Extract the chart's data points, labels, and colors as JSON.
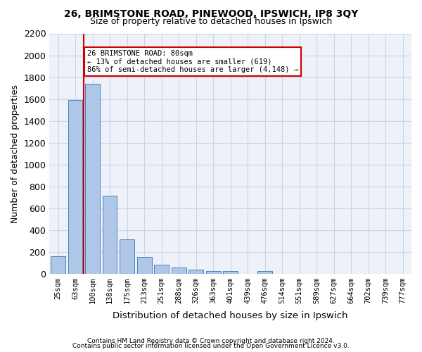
{
  "title1": "26, BRIMSTONE ROAD, PINEWOOD, IPSWICH, IP8 3QY",
  "title2": "Size of property relative to detached houses in Ipswich",
  "xlabel": "Distribution of detached houses by size in Ipswich",
  "ylabel": "Number of detached properties",
  "footnote1": "Contains HM Land Registry data © Crown copyright and database right 2024.",
  "footnote2": "Contains public sector information licensed under the Open Government Licence v3.0.",
  "categories": [
    "25sqm",
    "63sqm",
    "100sqm",
    "138sqm",
    "175sqm",
    "213sqm",
    "251sqm",
    "288sqm",
    "326sqm",
    "363sqm",
    "401sqm",
    "439sqm",
    "476sqm",
    "514sqm",
    "551sqm",
    "589sqm",
    "627sqm",
    "664sqm",
    "702sqm",
    "739sqm",
    "777sqm"
  ],
  "values": [
    160,
    1590,
    1740,
    710,
    315,
    155,
    80,
    55,
    35,
    25,
    20,
    0,
    20,
    0,
    0,
    0,
    0,
    0,
    0,
    0,
    0
  ],
  "bar_color": "#aec6e8",
  "bar_edge_color": "#4f81bd",
  "grid_color": "#c8d4e8",
  "bg_color": "#eef2f8",
  "vline_x": 1,
  "vline_color": "#cc0000",
  "annotation_text": "26 BRIMSTONE ROAD: 80sqm\n← 13% of detached houses are smaller (619)\n86% of semi-detached houses are larger (4,148) →",
  "annotation_box_color": "#cc0000",
  "ylim": [
    0,
    2200
  ],
  "yticks": [
    0,
    200,
    400,
    600,
    800,
    1000,
    1200,
    1400,
    1600,
    1800,
    2000,
    2200
  ]
}
